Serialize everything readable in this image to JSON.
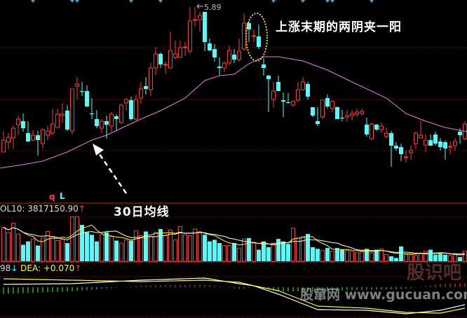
{
  "chart_data": [
    {
      "type": "candlestick",
      "panel": "price",
      "max_label": "5.89",
      "candles_ohlc": [
        [
          3.82,
          3.99,
          4.12,
          3.82
        ],
        [
          3.96,
          4.03,
          4.09,
          3.86
        ],
        [
          4.02,
          4.16,
          4.19,
          3.87
        ],
        [
          4.21,
          4.29,
          4.34,
          4.06
        ],
        [
          4.26,
          4.16,
          4.37,
          4.11
        ],
        [
          4.09,
          3.97,
          4.26,
          3.96
        ],
        [
          3.99,
          4.06,
          4.13,
          3.97
        ],
        [
          4.06,
          3.99,
          4.12,
          3.77
        ],
        [
          3.94,
          4.14,
          4.16,
          3.87
        ],
        [
          4.06,
          4.12,
          4.19,
          3.99
        ],
        [
          4.09,
          4.22,
          4.44,
          4.06
        ],
        [
          4.17,
          4.36,
          4.44,
          4.17
        ],
        [
          4.34,
          4.36,
          4.52,
          4.24
        ],
        [
          4.41,
          4.14,
          4.49,
          4.12
        ],
        [
          4.12,
          4.72,
          4.72,
          4.07
        ],
        [
          4.76,
          4.79,
          4.89,
          4.57
        ],
        [
          4.69,
          4.68,
          4.82,
          4.62
        ],
        [
          4.69,
          4.47,
          4.77,
          4.46
        ],
        [
          4.37,
          4.36,
          4.59,
          4.29
        ],
        [
          4.29,
          4.19,
          4.42,
          4.16
        ],
        [
          4.16,
          4.26,
          4.29,
          4.09
        ],
        [
          4.26,
          4.21,
          4.34,
          4.01
        ],
        [
          4.19,
          4.36,
          4.39,
          4.11
        ],
        [
          4.33,
          4.29,
          4.36,
          4.12
        ],
        [
          4.24,
          4.49,
          4.51,
          4.22
        ],
        [
          4.52,
          4.57,
          4.59,
          4.41
        ],
        [
          4.56,
          4.29,
          4.61,
          4.27
        ],
        [
          4.29,
          4.57,
          4.64,
          4.27
        ],
        [
          4.59,
          4.72,
          4.82,
          4.51
        ],
        [
          4.76,
          4.72,
          4.89,
          4.64
        ],
        [
          4.71,
          5.02,
          5.09,
          4.62
        ],
        [
          5.02,
          5.22,
          5.32,
          4.92
        ],
        [
          5.22,
          5.07,
          5.24,
          5.02
        ],
        [
          5.06,
          5.07,
          5.11,
          4.94
        ],
        [
          5.02,
          5.27,
          5.54,
          5.01
        ],
        [
          5.17,
          5.22,
          5.41,
          5.14
        ],
        [
          5.17,
          5.31,
          5.41,
          5.17
        ],
        [
          5.31,
          5.32,
          5.39,
          5.19
        ],
        [
          5.26,
          5.69,
          5.89,
          5.22
        ],
        [
          5.7,
          5.71,
          5.89,
          5.61
        ],
        [
          5.71,
          5.77,
          5.82,
          5.54
        ],
        [
          5.82,
          5.39,
          5.82,
          5.26
        ],
        [
          5.37,
          5.27,
          5.44,
          5.26
        ],
        [
          5.29,
          5.17,
          5.36,
          5.11
        ],
        [
          5.04,
          5.02,
          5.17,
          4.92
        ],
        [
          5.02,
          5.09,
          5.11,
          4.96
        ],
        [
          5.09,
          5.27,
          5.34,
          5.06
        ],
        [
          5.21,
          5.14,
          5.29,
          5.09
        ],
        [
          5.14,
          5.26,
          5.44,
          5.11
        ],
        [
          5.29,
          5.66,
          5.79,
          5.27
        ],
        [
          5.66,
          5.57,
          5.69,
          5.39
        ],
        [
          5.47,
          5.48,
          5.57,
          5.39
        ],
        [
          5.47,
          5.32,
          5.64,
          5.29
        ],
        [
          5.07,
          5.02,
          5.16,
          4.91
        ],
        [
          4.91,
          4.86,
          4.92,
          4.39
        ],
        [
          4.57,
          4.69,
          4.82,
          4.46
        ],
        [
          4.82,
          4.69,
          4.91,
          4.69
        ],
        [
          4.56,
          4.54,
          4.67,
          4.32
        ],
        [
          4.53,
          4.52,
          4.66,
          4.51
        ],
        [
          4.49,
          4.54,
          4.56,
          4.47
        ],
        [
          4.56,
          4.71,
          4.82,
          4.54
        ],
        [
          4.71,
          4.82,
          4.89,
          4.69
        ],
        [
          4.79,
          4.61,
          4.82,
          4.57
        ],
        [
          4.46,
          4.34,
          4.46,
          4.32
        ],
        [
          4.26,
          4.22,
          4.46,
          4.19
        ],
        [
          4.32,
          4.56,
          4.56,
          4.29
        ],
        [
          4.59,
          4.47,
          4.64,
          4.44
        ],
        [
          4.44,
          4.54,
          4.56,
          4.39
        ],
        [
          4.46,
          4.29,
          4.47,
          4.29
        ],
        [
          4.31,
          4.3,
          4.42,
          4.26
        ],
        [
          4.32,
          4.34,
          4.42,
          4.26
        ],
        [
          4.34,
          4.37,
          4.42,
          4.27
        ],
        [
          4.36,
          4.39,
          4.44,
          4.32
        ],
        [
          4.37,
          4.4,
          4.44,
          4.34
        ],
        [
          4.21,
          4.07,
          4.31,
          4.04
        ],
        [
          4.01,
          4.22,
          4.24,
          3.99
        ],
        [
          4.21,
          4.14,
          4.22,
          4.12
        ],
        [
          4.14,
          4.19,
          4.24,
          4.09
        ],
        [
          4.04,
          4.09,
          4.17,
          4.01
        ],
        [
          4.09,
          3.91,
          4.12,
          3.61
        ],
        [
          3.91,
          3.87,
          3.96,
          3.84
        ],
        [
          3.89,
          3.79,
          3.94,
          3.69
        ],
        [
          3.74,
          3.75,
          3.84,
          3.67
        ],
        [
          3.81,
          3.84,
          3.91,
          3.71
        ],
        [
          3.94,
          4.09,
          4.11,
          3.86
        ],
        [
          4.02,
          4.06,
          4.27,
          4.02
        ],
        [
          3.92,
          3.99,
          4.07,
          3.82
        ],
        [
          3.99,
          3.91,
          4.07,
          3.91
        ],
        [
          4.07,
          3.94,
          4.11,
          3.91
        ],
        [
          3.97,
          3.89,
          4.02,
          3.84
        ],
        [
          3.96,
          3.87,
          3.99,
          3.71
        ],
        [
          3.89,
          3.9,
          3.97,
          3.79
        ],
        [
          3.91,
          3.97,
          4.02,
          3.84
        ],
        [
          4.11,
          4.06,
          4.16,
          3.94
        ],
        [
          4.01,
          4.22,
          4.26,
          3.99
        ]
      ],
      "ma30": [
        [
          0,
          3.59
        ],
        [
          4,
          3.64
        ],
        [
          8,
          3.69
        ],
        [
          13,
          3.82
        ],
        [
          18,
          3.99
        ],
        [
          21,
          4.06
        ],
        [
          24,
          4.16
        ],
        [
          28,
          4.29
        ],
        [
          32,
          4.41
        ],
        [
          37,
          4.59
        ],
        [
          41,
          4.84
        ],
        [
          44,
          4.91
        ],
        [
          47,
          4.93
        ],
        [
          50,
          5.08
        ],
        [
          53,
          5.18
        ],
        [
          56,
          5.18
        ],
        [
          61,
          5.12
        ],
        [
          66,
          4.99
        ],
        [
          71,
          4.82
        ],
        [
          78,
          4.59
        ],
        [
          82,
          4.37
        ],
        [
          86,
          4.26
        ],
        [
          90,
          4.17
        ],
        [
          94,
          4.11
        ]
      ],
      "up_color": "#ff3c3c",
      "down_color": "#54fcfc",
      "ma30_color": "#e080e0",
      "markers_top": [
        6,
        14,
        15,
        26,
        32,
        55,
        61,
        66,
        67,
        75
      ],
      "marker_color": "#4aa3c8"
    },
    {
      "type": "bar",
      "panel": "volume",
      "label_name": "OL10: 3817150.90",
      "label_arrow": "↑",
      "values_million": [
        4.1,
        3.5,
        4.6,
        3.3,
        2.0,
        2.4,
        2.7,
        1.9,
        2.8,
        3.6,
        3.0,
        2.5,
        2.7,
        2.2,
        5.4,
        5.4,
        4.4,
        3.5,
        3.2,
        2.4,
        3.2,
        3.5,
        3.0,
        2.5,
        2.2,
        2.6,
        2.5,
        3.7,
        3.1,
        3.6,
        3.0,
        3.5,
        3.9,
        3.1,
        3.8,
        2.6,
        4.2,
        3.2,
        3.1,
        3.9,
        3.5,
        3.2,
        2.4,
        2.6,
        2.2,
        1.9,
        1.9,
        2.2,
        1.6,
        2.7,
        2.8,
        2.2,
        1.4,
        2.4,
        1.7,
        2.2,
        2.7,
        2.4,
        2.1,
        4.0,
        2.8,
        3.0,
        3.3,
        1.7,
        1.5,
        1.3,
        1.6,
        1.2,
        1.6,
        1.4,
        1.3,
        1.2,
        1.1,
        1.1,
        1.5,
        1.0,
        1.4,
        1.5,
        0.8,
        0.6,
        0.4,
        1.8,
        0.8,
        0.8,
        0.7,
        0.9,
        1.2,
        1.4,
        0.8,
        0.9,
        0.8,
        0.7,
        0.9,
        0.5,
        1.2
      ],
      "ma_short_color": "#ffff40",
      "ma_long_color": "#ffffff"
    },
    {
      "type": "line",
      "panel": "macd",
      "label_prefix": "98",
      "label_prefix_arrow": "↓",
      "label_dea": "DEA: +0.070",
      "label_dea_arrow": "↑",
      "dif": [
        [
          0,
          0.02
        ],
        [
          14,
          0.025
        ],
        [
          28,
          0.05
        ],
        [
          41,
          0.065
        ],
        [
          48,
          0.025
        ],
        [
          51,
          0.01
        ],
        [
          56,
          -0.05
        ],
        [
          64,
          -0.16
        ],
        [
          74,
          -0.165
        ],
        [
          82,
          -0.19
        ],
        [
          89,
          -0.165
        ],
        [
          94,
          -0.125
        ]
      ],
      "dea": [
        [
          0,
          0.06
        ],
        [
          14,
          0.05
        ],
        [
          28,
          0.04
        ],
        [
          41,
          0.05
        ],
        [
          48,
          0.035
        ],
        [
          51,
          0.01
        ],
        [
          56,
          -0.025
        ],
        [
          64,
          -0.135
        ],
        [
          74,
          -0.15
        ],
        [
          82,
          -0.18
        ],
        [
          89,
          -0.185
        ],
        [
          94,
          -0.15
        ]
      ],
      "dif_color": "#ffffff",
      "dea_color": "#ffff40",
      "hist_pos_color": "#ff3c3c",
      "hist_neg_color": "#40ff40"
    }
  ],
  "legend_marks": {
    "q": "q",
    "L": "L"
  },
  "annotations": {
    "pattern_note": "上涨末期的两阴夹一阳",
    "ma_note": "30日均线",
    "ellipse_color": "#e8e020"
  },
  "watermark": {
    "site": "股窜网 www.gucuan.com",
    "logo": "股识吧"
  }
}
